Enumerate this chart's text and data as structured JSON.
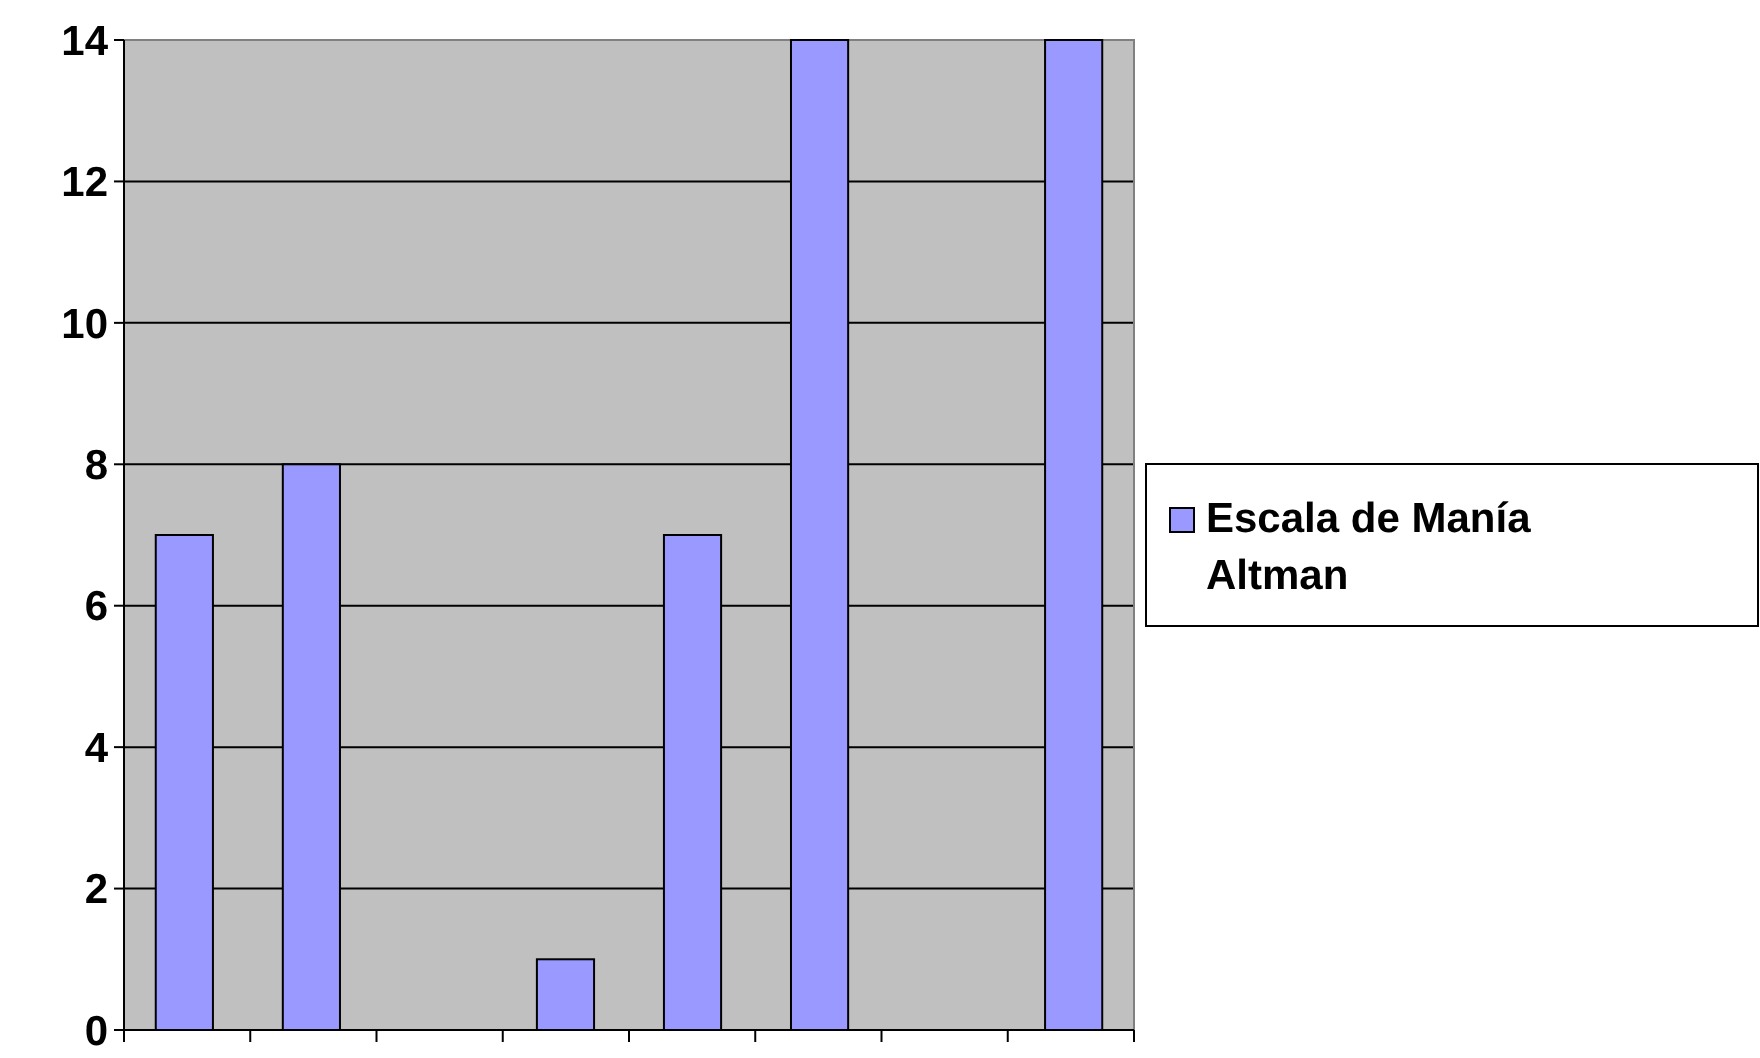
{
  "chart_data": {
    "type": "bar",
    "categories": [
      null,
      null,
      null,
      null,
      null,
      null,
      null,
      null
    ],
    "series": [
      {
        "name": "Escala de Manía Altman",
        "color": "#9999ff",
        "values": [
          7,
          8,
          0,
          1,
          7,
          14,
          0,
          14
        ]
      }
    ],
    "ylim": [
      0,
      14
    ],
    "yticks": [
      0,
      2,
      4,
      6,
      8,
      10,
      12,
      14
    ],
    "grid": "y",
    "legend": "right"
  }
}
